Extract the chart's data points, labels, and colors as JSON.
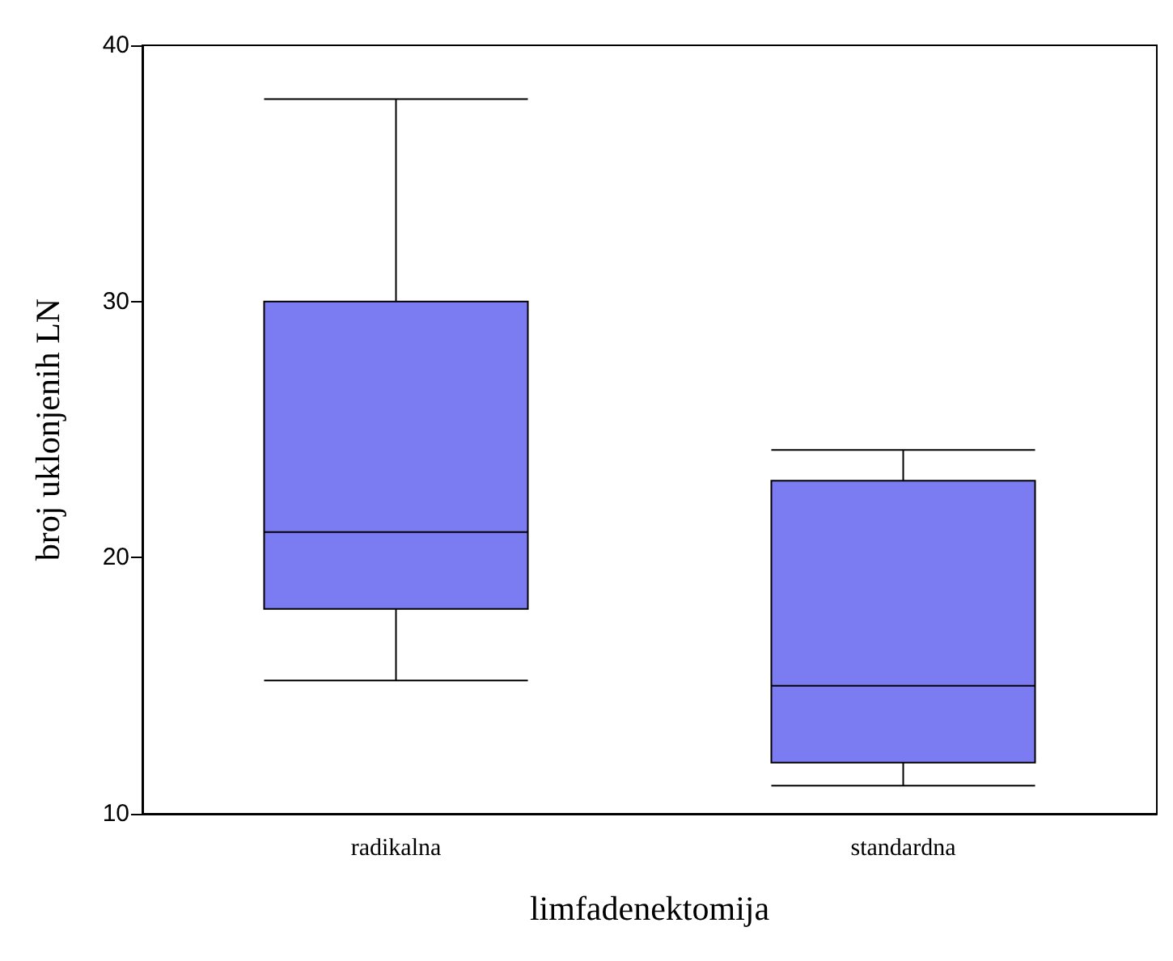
{
  "chart_data": {
    "type": "box",
    "xlabel": "limfadenektomija",
    "ylabel": "broj uklonjenih LN",
    "categories": [
      "radikalna",
      "standardna"
    ],
    "boxes": [
      {
        "low": 15.2,
        "q1": 18,
        "median": 21,
        "q3": 30,
        "high": 37.9
      },
      {
        "low": 11.1,
        "q1": 12,
        "median": 15,
        "q3": 23,
        "high": 24.2
      }
    ],
    "color": "#7b7bf2",
    "ylim": [
      10,
      40
    ],
    "yticks": [
      10,
      20,
      30,
      40
    ]
  }
}
